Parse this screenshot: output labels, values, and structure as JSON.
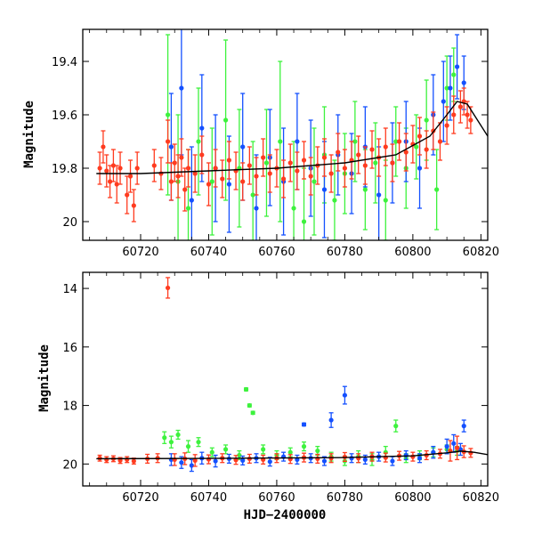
{
  "chart_data": [
    {
      "type": "scatter",
      "panel": "top",
      "xlabel": "",
      "ylabel": "Magnitude",
      "xlim": [
        60703,
        60822
      ],
      "ylim": [
        20.07,
        19.28
      ],
      "y_inverted": true,
      "x_ticks": [
        60720,
        60740,
        60760,
        60780,
        60800,
        60820
      ],
      "y_ticks": [
        19.4,
        19.6,
        19.8,
        20
      ],
      "y_tick_labels": [
        "19.4",
        "19.6",
        "19.8",
        "20"
      ],
      "grid": false,
      "colors": {
        "red": "#ff3b1f",
        "green": "#3df23d",
        "blue": "#1450ff",
        "model": "#000000"
      },
      "model_curve": {
        "name": "",
        "x": [
          60707,
          60720,
          60740,
          60760,
          60780,
          60795,
          60805,
          60810,
          60813,
          60816,
          60819,
          60822
        ],
        "y": [
          19.82,
          19.82,
          19.81,
          19.8,
          19.78,
          19.75,
          19.68,
          19.6,
          19.55,
          19.56,
          19.62,
          19.68
        ]
      },
      "series": [
        {
          "color": "red",
          "x": [
            60708,
            60709,
            60710,
            60711,
            60712,
            60713,
            60714,
            60716,
            60717,
            60718,
            60719,
            60724,
            60726,
            60728,
            60729,
            60730,
            60731,
            60732,
            60733,
            60734,
            60736,
            60738,
            60740,
            60742,
            60744,
            60746,
            60748,
            60750,
            60752,
            60754,
            60756,
            60758,
            60760,
            60762,
            60764,
            60766,
            60768,
            60770,
            60772,
            60774,
            60776,
            60778,
            60780,
            60782,
            60784,
            60786,
            60788,
            60790,
            60792,
            60794,
            60796,
            60798,
            60800,
            60802,
            60804,
            60806,
            60808,
            60810,
            60812,
            60814,
            60815,
            60816,
            60817
          ],
          "y": [
            19.8,
            19.72,
            19.81,
            19.85,
            19.79,
            19.86,
            19.8,
            19.9,
            19.83,
            19.94,
            19.8,
            19.79,
            19.82,
            19.7,
            19.85,
            19.78,
            19.83,
            19.76,
            19.88,
            19.8,
            19.82,
            19.75,
            19.86,
            19.8,
            19.84,
            19.77,
            19.81,
            19.85,
            19.79,
            19.83,
            19.76,
            19.82,
            19.8,
            19.84,
            19.78,
            19.81,
            19.77,
            19.83,
            19.79,
            19.76,
            19.82,
            19.74,
            19.8,
            19.77,
            19.75,
            19.79,
            19.73,
            19.76,
            19.72,
            19.78,
            19.7,
            19.74,
            19.71,
            19.68,
            19.73,
            19.66,
            19.7,
            19.64,
            19.6,
            19.57,
            19.55,
            19.6,
            19.62
          ],
          "err": [
            0.06,
            0.06,
            0.06,
            0.06,
            0.06,
            0.07,
            0.06,
            0.07,
            0.06,
            0.06,
            0.06,
            0.06,
            0.06,
            0.08,
            0.07,
            0.07,
            0.08,
            0.07,
            0.08,
            0.07,
            0.07,
            0.07,
            0.08,
            0.07,
            0.07,
            0.07,
            0.07,
            0.07,
            0.07,
            0.07,
            0.07,
            0.07,
            0.07,
            0.07,
            0.07,
            0.07,
            0.07,
            0.07,
            0.07,
            0.07,
            0.07,
            0.07,
            0.07,
            0.07,
            0.07,
            0.07,
            0.07,
            0.07,
            0.07,
            0.07,
            0.07,
            0.07,
            0.07,
            0.07,
            0.07,
            0.07,
            0.07,
            0.07,
            0.07,
            0.06,
            0.05,
            0.05,
            0.05
          ]
        },
        {
          "color": "green",
          "x": [
            60728,
            60731,
            60734,
            60737,
            60741,
            60745,
            60749,
            60753,
            60757,
            60761,
            60765,
            60768,
            60771,
            60774,
            60777,
            60780,
            60783,
            60786,
            60789,
            60792,
            60795,
            60798,
            60801,
            60804,
            60807,
            60810,
            60812
          ],
          "y": [
            19.6,
            19.85,
            19.95,
            19.7,
            19.85,
            19.62,
            19.8,
            19.9,
            19.78,
            19.7,
            19.95,
            20.0,
            19.85,
            19.75,
            19.92,
            19.82,
            19.7,
            19.88,
            19.78,
            19.92,
            19.7,
            19.8,
            19.72,
            19.62,
            19.88,
            19.5,
            19.45
          ],
          "err": [
            0.3,
            0.25,
            0.22,
            0.2,
            0.2,
            0.3,
            0.22,
            0.2,
            0.2,
            0.3,
            0.25,
            0.2,
            0.2,
            0.18,
            0.15,
            0.15,
            0.15,
            0.15,
            0.15,
            0.15,
            0.13,
            0.15,
            0.12,
            0.15,
            0.15,
            0.12,
            0.1
          ]
        },
        {
          "color": "blue",
          "x": [
            60729,
            60732,
            60735,
            60738,
            60742,
            60746,
            60750,
            60754,
            60758,
            60762,
            60766,
            60770,
            60774,
            60778,
            60782,
            60786,
            60790,
            60794,
            60798,
            60802,
            60806,
            60809,
            60811,
            60813,
            60815
          ],
          "y": [
            19.72,
            19.5,
            19.92,
            19.65,
            19.8,
            19.86,
            19.72,
            19.95,
            19.76,
            19.85,
            19.7,
            19.8,
            19.88,
            19.75,
            19.82,
            19.72,
            19.9,
            19.78,
            19.7,
            19.8,
            19.6,
            19.55,
            19.5,
            19.42,
            19.48
          ],
          "err": [
            0.2,
            0.25,
            0.2,
            0.2,
            0.2,
            0.18,
            0.2,
            0.2,
            0.18,
            0.2,
            0.18,
            0.18,
            0.18,
            0.15,
            0.15,
            0.15,
            0.18,
            0.15,
            0.15,
            0.15,
            0.15,
            0.15,
            0.12,
            0.12,
            0.1
          ]
        }
      ]
    },
    {
      "type": "scatter",
      "panel": "bottom",
      "xlabel": "HJD−2400000",
      "ylabel": "Magnitude",
      "xlim": [
        60703,
        60822
      ],
      "ylim": [
        20.75,
        13.45
      ],
      "y_inverted": true,
      "x_ticks": [
        60720,
        60740,
        60760,
        60780,
        60800,
        60820
      ],
      "y_ticks": [
        14,
        16,
        18,
        20
      ],
      "y_tick_labels": [
        "14",
        "16",
        "18",
        "20"
      ],
      "grid": false,
      "model_curve": {
        "name": "",
        "x": [
          60707,
          60740,
          60780,
          60800,
          60810,
          60814,
          60818,
          60822
        ],
        "y": [
          19.82,
          19.81,
          19.78,
          19.72,
          19.62,
          19.56,
          19.6,
          19.68
        ]
      },
      "series": [
        {
          "color": "red",
          "x": [
            60708,
            60710,
            60712,
            60714,
            60716,
            60718,
            60722,
            60725,
            60728,
            60730,
            60733,
            60736,
            60740,
            60744,
            60748,
            60752,
            60756,
            60760,
            60764,
            60768,
            60772,
            60776,
            60780,
            60784,
            60788,
            60792,
            60796,
            60800,
            60804,
            60808,
            60811,
            60813,
            60815,
            60817
          ],
          "y": [
            19.8,
            19.85,
            19.82,
            19.88,
            19.85,
            19.9,
            19.82,
            19.8,
            13.98,
            19.85,
            19.82,
            19.88,
            19.84,
            19.8,
            19.86,
            19.82,
            19.85,
            19.8,
            19.83,
            19.78,
            19.82,
            19.8,
            19.76,
            19.8,
            19.75,
            19.78,
            19.72,
            19.75,
            19.7,
            19.65,
            19.55,
            19.45,
            19.58,
            19.62
          ],
          "err": [
            0.1,
            0.1,
            0.1,
            0.1,
            0.1,
            0.1,
            0.15,
            0.15,
            0.35,
            0.2,
            0.2,
            0.2,
            0.15,
            0.15,
            0.15,
            0.15,
            0.15,
            0.15,
            0.15,
            0.15,
            0.15,
            0.15,
            0.15,
            0.15,
            0.15,
            0.15,
            0.15,
            0.15,
            0.15,
            0.15,
            0.35,
            0.4,
            0.2,
            0.15
          ]
        },
        {
          "color": "green",
          "x": [
            60727,
            60729,
            60731,
            60734,
            60737,
            60741,
            60745,
            60749,
            60751,
            60752,
            60753,
            60756,
            60760,
            60764,
            60768,
            60772,
            60776,
            60780,
            60784,
            60788,
            60792,
            60795,
            60798,
            60802,
            60806,
            60810,
            60813
          ],
          "y": [
            19.1,
            19.25,
            19.0,
            19.4,
            19.25,
            19.6,
            19.5,
            19.7,
            17.45,
            18.0,
            18.25,
            19.5,
            19.7,
            19.6,
            19.4,
            19.55,
            19.75,
            19.9,
            19.75,
            19.85,
            19.6,
            18.7,
            19.8,
            19.7,
            19.6,
            19.5,
            19.55
          ],
          "err": [
            0.2,
            0.2,
            0.15,
            0.2,
            0.15,
            0.15,
            0.15,
            0.15,
            0.05,
            0.05,
            0.05,
            0.15,
            0.15,
            0.15,
            0.15,
            0.15,
            0.15,
            0.15,
            0.2,
            0.2,
            0.2,
            0.2,
            0.15,
            0.15,
            0.15,
            0.15,
            0.15
          ]
        },
        {
          "color": "blue",
          "x": [
            60729,
            60732,
            60735,
            60738,
            60742,
            60746,
            60750,
            60754,
            60758,
            60762,
            60766,
            60768,
            60770,
            60774,
            60776,
            60780,
            60782,
            60786,
            60790,
            60794,
            60798,
            60802,
            60806,
            60810,
            60812,
            60814,
            60815
          ],
          "y": [
            19.85,
            19.95,
            20.05,
            19.8,
            19.9,
            19.82,
            19.88,
            19.8,
            19.92,
            19.75,
            19.85,
            18.65,
            19.8,
            19.9,
            18.5,
            17.65,
            19.8,
            19.85,
            19.75,
            19.9,
            19.7,
            19.8,
            19.6,
            19.4,
            19.3,
            19.5,
            18.7
          ],
          "err": [
            0.2,
            0.2,
            0.2,
            0.2,
            0.2,
            0.15,
            0.15,
            0.15,
            0.15,
            0.15,
            0.15,
            0.05,
            0.15,
            0.15,
            0.25,
            0.3,
            0.15,
            0.15,
            0.15,
            0.15,
            0.15,
            0.15,
            0.2,
            0.25,
            0.3,
            0.2,
            0.2
          ]
        }
      ]
    }
  ]
}
